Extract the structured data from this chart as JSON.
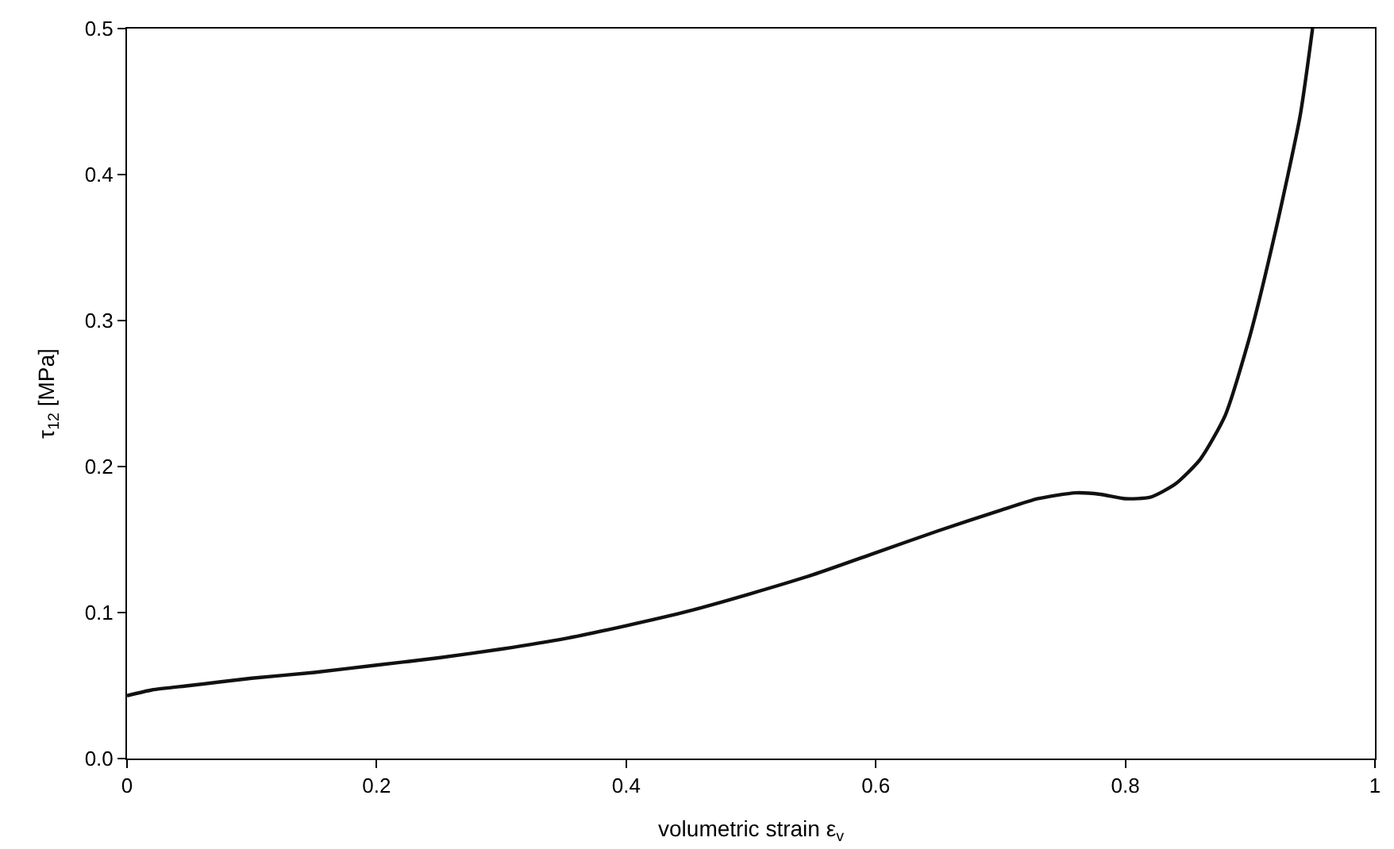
{
  "chart_data": {
    "type": "line",
    "xlabel": "volumetric strain ε$_{v}$",
    "ylabel": "τ$_{12}$ [MPa]",
    "x": [
      0,
      0.02,
      0.05,
      0.1,
      0.15,
      0.2,
      0.25,
      0.3,
      0.35,
      0.4,
      0.45,
      0.5,
      0.55,
      0.6,
      0.65,
      0.7,
      0.73,
      0.76,
      0.78,
      0.8,
      0.82,
      0.84,
      0.86,
      0.88,
      0.9,
      0.92,
      0.94,
      0.95
    ],
    "series": [
      {
        "color": "#111111",
        "values": [
          0.043,
          0.047,
          0.05,
          0.055,
          0.059,
          0.064,
          0.069,
          0.075,
          0.082,
          0.091,
          0.101,
          0.113,
          0.126,
          0.141,
          0.156,
          0.17,
          0.178,
          0.182,
          0.181,
          0.178,
          0.179,
          0.188,
          0.205,
          0.235,
          0.29,
          0.36,
          0.44,
          0.5
        ]
      }
    ],
    "xlim": [
      0,
      1
    ],
    "ylim": [
      0,
      0.5
    ],
    "xticks": [
      0,
      0.2,
      0.4,
      0.6,
      0.8,
      1
    ],
    "yticks": [
      {
        "value": 0,
        "label": "0.0"
      },
      0.1,
      0.2,
      0.3,
      0.4,
      0.5
    ],
    "legend": false,
    "marker": "none",
    "line_style": "solid"
  }
}
